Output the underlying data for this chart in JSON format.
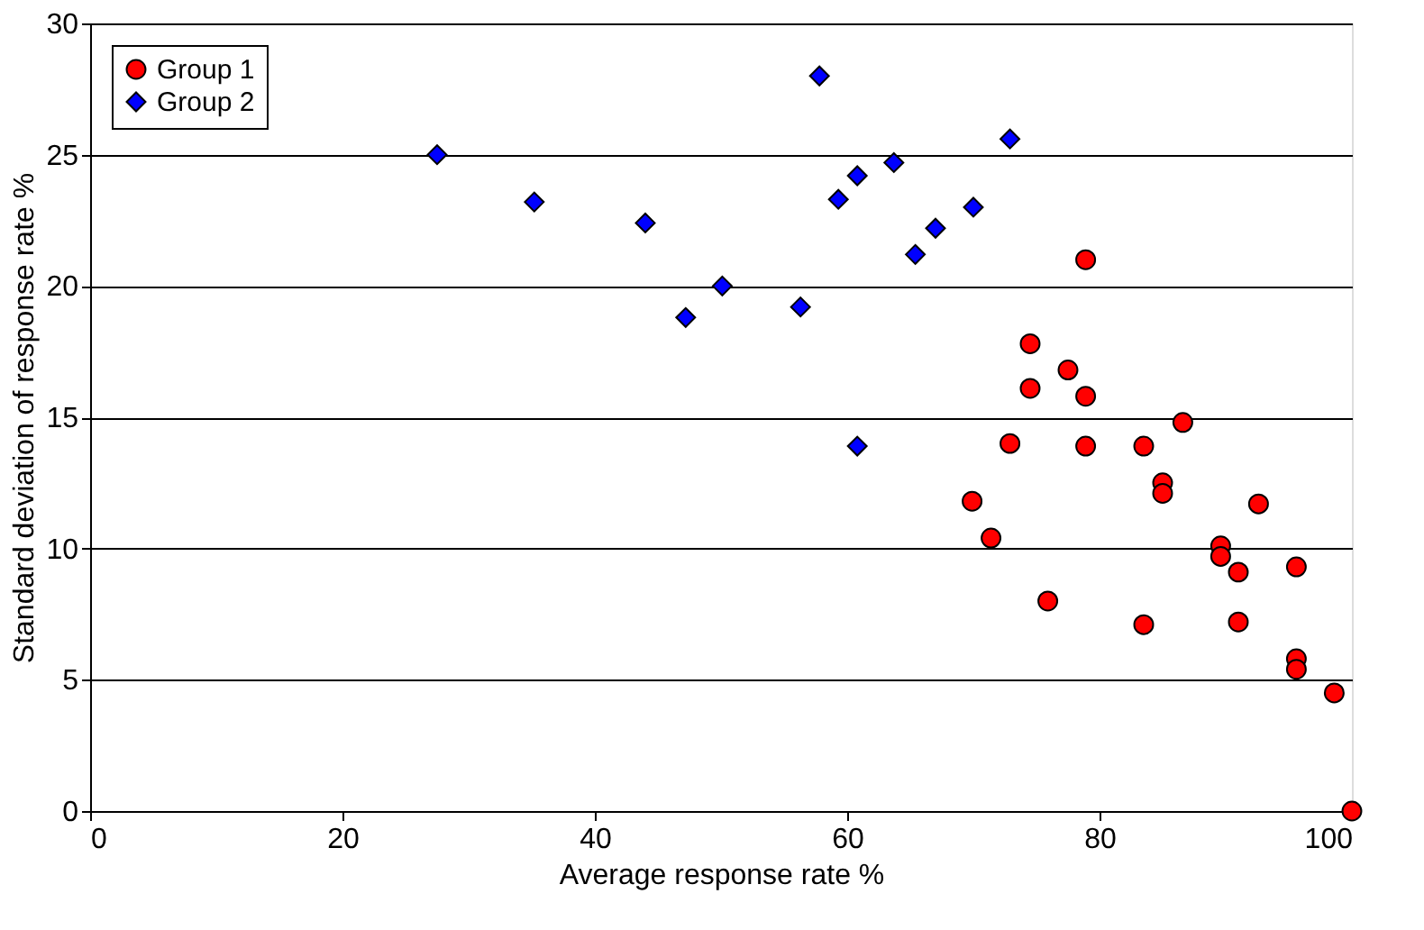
{
  "chart_data": {
    "type": "scatter",
    "xlabel": "Average response rate  %",
    "ylabel": "Standard deviation of response rate  %",
    "xlim": [
      0,
      100
    ],
    "ylim": [
      0,
      30
    ],
    "xticks": [
      0,
      20,
      40,
      60,
      80,
      100
    ],
    "yticks": [
      0,
      5,
      10,
      15,
      20,
      25,
      30
    ],
    "grid": "y",
    "legend": "top left",
    "series": [
      {
        "name": "Group 1",
        "color": "#ff0000",
        "marker": "circle",
        "x": [
          69.9,
          71.4,
          72.9,
          74.5,
          74.5,
          75.9,
          77.5,
          78.9,
          78.9,
          78.9,
          83.5,
          83.5,
          85,
          85,
          86.6,
          89.6,
          89.6,
          91,
          91,
          92.6,
          95.6,
          95.6,
          95.6,
          98.6,
          100
        ],
        "values": [
          11.8,
          10.4,
          14.0,
          17.8,
          16.1,
          8.0,
          16.8,
          21.0,
          15.8,
          13.9,
          13.9,
          7.1,
          12.5,
          12.1,
          14.8,
          10.1,
          9.7,
          9.1,
          7.2,
          11.7,
          9.3,
          5.8,
          5.4,
          4.5,
          0
        ]
      },
      {
        "name": "Group 2",
        "color": "#0000ff",
        "marker": "diamond",
        "x": [
          27.5,
          35.2,
          44,
          47.2,
          50.1,
          56.3,
          57.8,
          59.3,
          60.8,
          60.8,
          63.7,
          65.4,
          67,
          70,
          72.9
        ],
        "values": [
          25.0,
          23.2,
          22.4,
          18.8,
          20.0,
          19.2,
          28.0,
          23.3,
          24.2,
          13.9,
          24.7,
          21.2,
          22.2,
          23.0,
          25.6
        ]
      }
    ]
  }
}
